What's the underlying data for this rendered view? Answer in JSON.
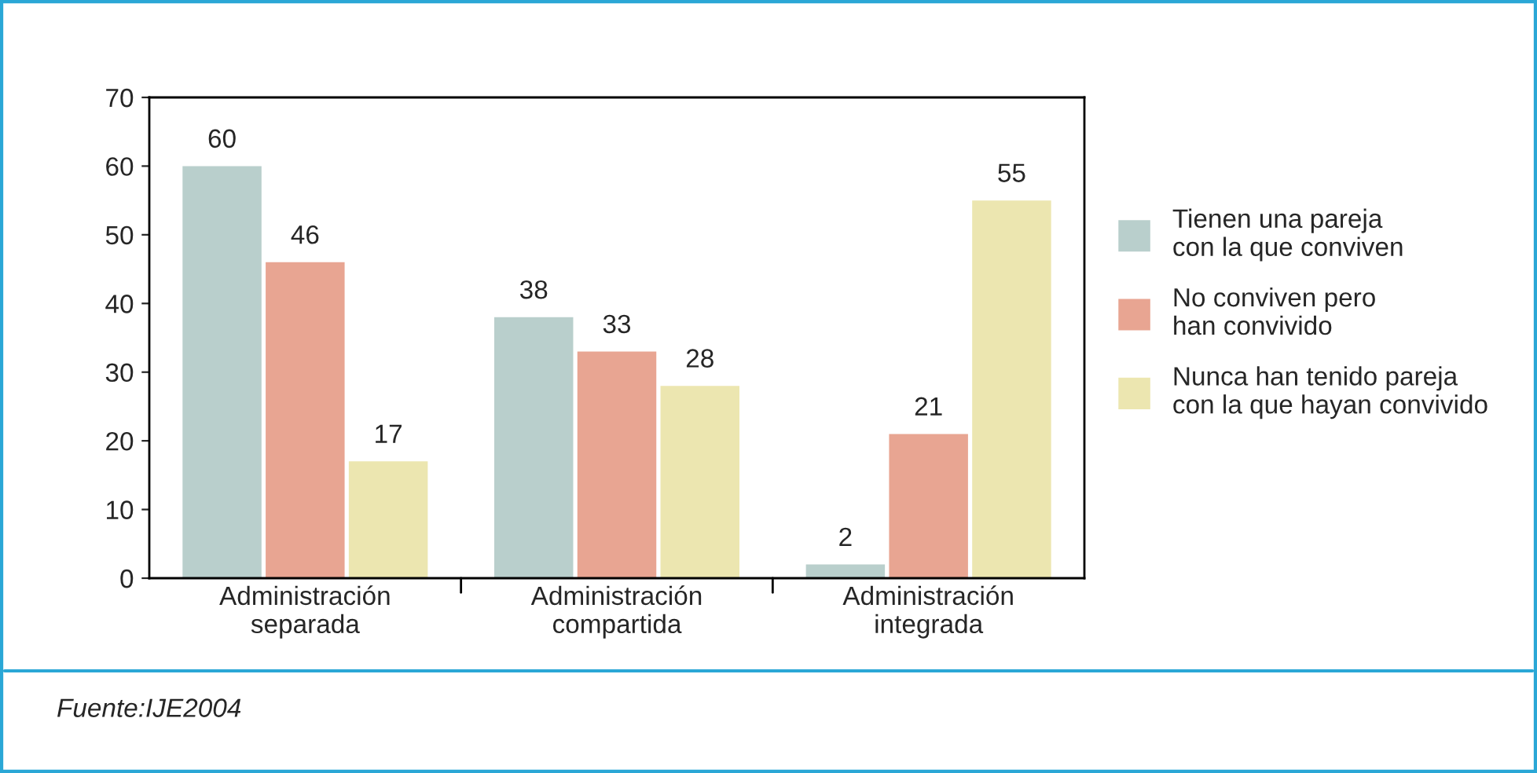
{
  "chart_data": {
    "type": "bar",
    "categories": [
      "Administración\nseparada",
      "Administración\ncompartida",
      "Administración\nintegrada"
    ],
    "series": [
      {
        "name": "Tienen una pareja\ncon la que conviven",
        "color": "#b9cfcc",
        "values": [
          60,
          38,
          2
        ]
      },
      {
        "name": "No conviven pero\nhan convivido",
        "color": "#e8a592",
        "values": [
          46,
          33,
          21
        ]
      },
      {
        "name": "Nunca han tenido pareja\ncon la que hayan convivido",
        "color": "#ece6b0",
        "values": [
          17,
          28,
          55
        ]
      }
    ],
    "ylim": [
      0,
      70
    ],
    "yticks": [
      0,
      10,
      20,
      30,
      40,
      50,
      60,
      70
    ],
    "data_labels": true,
    "grid": false,
    "legend": "right",
    "annotations": [
      "Fuente:IJE2004"
    ]
  }
}
